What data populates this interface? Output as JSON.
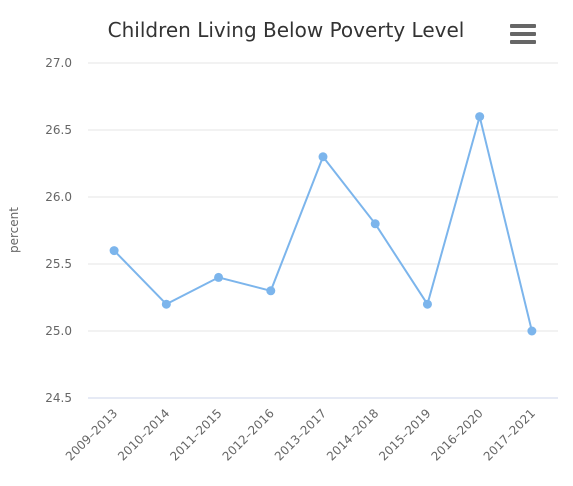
{
  "chart_data": {
    "type": "line",
    "title": "Children Living Below Poverty Level",
    "xlabel": "",
    "ylabel": "percent",
    "categories": [
      "2009–2013",
      "2010–2014",
      "2011–2015",
      "2012–2016",
      "2013–2017",
      "2014–2018",
      "2015–2019",
      "2016–2020",
      "2017–2021"
    ],
    "series": [
      {
        "values": [
          25.6,
          25.2,
          25.4,
          25.3,
          26.3,
          25.8,
          25.2,
          26.6,
          25.0
        ]
      }
    ],
    "ylim": [
      24.5,
      27.0
    ],
    "yticks": [
      "24.5",
      "25.0",
      "25.5",
      "26.0",
      "26.5",
      "27.0"
    ],
    "grid": true,
    "legend": "none",
    "color": "#7cb5ec"
  },
  "menu": {
    "icon": "hamburger-menu-icon"
  }
}
